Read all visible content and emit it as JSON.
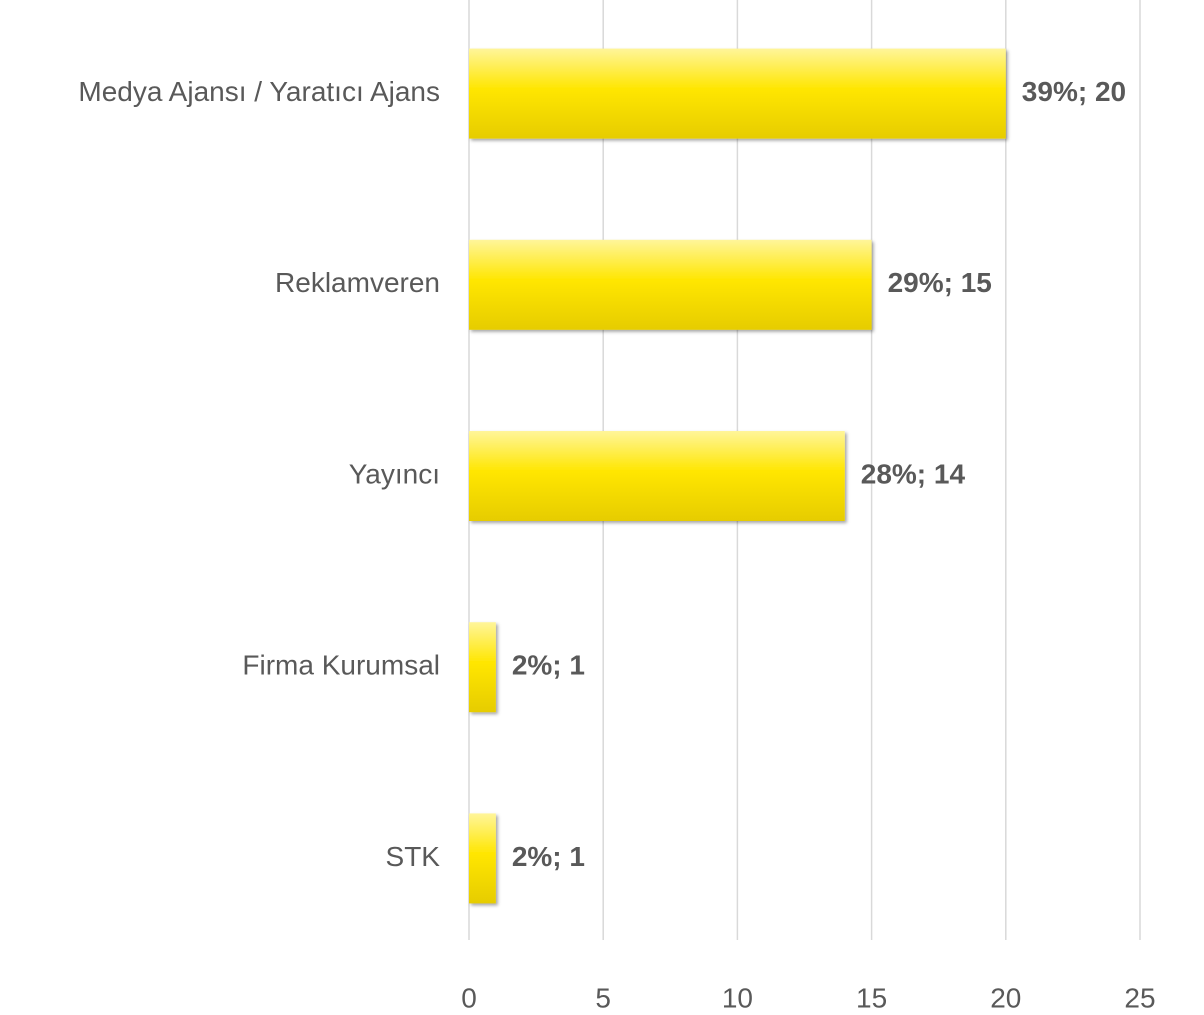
{
  "chart_data": {
    "type": "barh",
    "categories": [
      "Medya Ajansı / Yaratıcı Ajans",
      "Reklamveren",
      "Yayıncı",
      "Firma Kurumsal",
      "STK"
    ],
    "values": [
      20,
      15,
      14,
      1,
      1
    ],
    "value_labels": [
      "39%; 20",
      "29%; 15",
      "28%; 14",
      "2%; 1",
      "2%; 1"
    ],
    "color": "#ffe600",
    "xlim": [
      0,
      25
    ],
    "xticks": [
      0,
      5,
      10,
      15,
      20,
      25
    ],
    "grid": true
  }
}
